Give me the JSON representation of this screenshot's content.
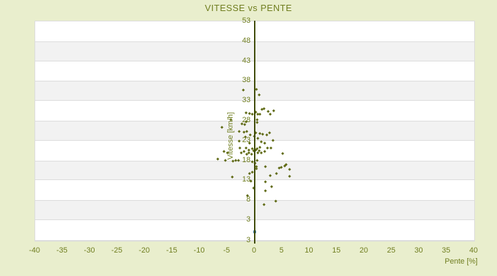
{
  "title": "VITESSE vs PENTE",
  "colors": {
    "background": "#e9eecd",
    "band_white": "#ffffff",
    "band_gray": "#f2f2f2",
    "band_border": "#dcdcdc",
    "axis_line": "#3e4a05",
    "text": "#6f7d1f",
    "point_main": "#606b16",
    "point_highlight": "#3e7ca6"
  },
  "chart_data": {
    "type": "scatter",
    "title": "VITESSE vs PENTE",
    "xlabel": "Pente [%]",
    "ylabel": "Vitesse [km/h]",
    "xlim": [
      -40,
      40
    ],
    "ylim": [
      -2.2,
      53
    ],
    "x_ticks": [
      -40,
      -35,
      -30,
      -25,
      -20,
      -15,
      -10,
      -5,
      0,
      5,
      10,
      15,
      20,
      25,
      30,
      35,
      40
    ],
    "y_ticks": [
      53,
      48,
      43,
      38,
      33,
      28,
      23,
      18,
      13,
      8,
      3
    ],
    "y_axis_bottom_label": "3",
    "grid": "horizontal-bands-alternating",
    "legend": "none",
    "series": [
      {
        "name": "vitesse-points",
        "color": "#606b16",
        "marker": "diamond",
        "points": [
          [
            -2.1,
            35.8
          ],
          [
            0.3,
            35.9
          ],
          [
            0.8,
            34.5
          ],
          [
            -1.6,
            30.0
          ],
          [
            -1.0,
            29.9
          ],
          [
            -0.5,
            29.7
          ],
          [
            0.25,
            30.1
          ],
          [
            0.6,
            29.6
          ],
          [
            0.9,
            29.6
          ],
          [
            1.3,
            30.9
          ],
          [
            1.7,
            31.0
          ],
          [
            2.5,
            30.3
          ],
          [
            2.8,
            29.6
          ],
          [
            3.5,
            30.5
          ],
          [
            -4.4,
            28.2
          ],
          [
            -2.3,
            27.3
          ],
          [
            -1.8,
            27.0
          ],
          [
            -1.6,
            27.8
          ],
          [
            0.4,
            27.5
          ],
          [
            0.5,
            28.3
          ],
          [
            -6.0,
            26.3
          ],
          [
            -2.8,
            25.4
          ],
          [
            -2.0,
            25.1
          ],
          [
            -1.4,
            25.3
          ],
          [
            -1.7,
            24.0
          ],
          [
            -0.8,
            24.4
          ],
          [
            -0.1,
            24.1
          ],
          [
            0.2,
            24.9
          ],
          [
            0.9,
            24.8
          ],
          [
            1.5,
            24.6
          ],
          [
            2.2,
            24.5
          ],
          [
            2.7,
            24.9
          ],
          [
            -2.8,
            22.8
          ],
          [
            -0.9,
            22.3
          ],
          [
            0.6,
            23.5
          ],
          [
            1.2,
            22.7
          ],
          [
            1.8,
            22.4
          ],
          [
            3.3,
            23.1
          ],
          [
            -5.6,
            20.3
          ],
          [
            -5.0,
            19.9
          ],
          [
            -2.75,
            21.2
          ],
          [
            -2.5,
            19.9
          ],
          [
            -2.0,
            20.3
          ],
          [
            -1.6,
            21.1
          ],
          [
            -1.5,
            19.6
          ],
          [
            -1.1,
            20.0
          ],
          [
            -1.1,
            20.6
          ],
          [
            -0.6,
            19.5
          ],
          [
            -0.5,
            20.9
          ],
          [
            -0.25,
            20.4
          ],
          [
            0.2,
            20.6
          ],
          [
            0.5,
            21.0
          ],
          [
            0.6,
            20.0
          ],
          [
            0.8,
            20.5
          ],
          [
            1.0,
            21.3
          ],
          [
            1.2,
            20.0
          ],
          [
            1.8,
            20.3
          ],
          [
            2.3,
            21.2
          ],
          [
            3.0,
            21.2
          ],
          [
            5.1,
            19.7
          ],
          [
            -6.7,
            18.4
          ],
          [
            -5.4,
            18.1
          ],
          [
            -3.9,
            17.8
          ],
          [
            -3.5,
            18.0
          ],
          [
            -2.9,
            18.0
          ],
          [
            -0.4,
            17.7
          ],
          [
            0.1,
            17.4
          ],
          [
            0.5,
            18.0
          ],
          [
            0.3,
            16.4
          ],
          [
            0.35,
            16.0
          ],
          [
            1.9,
            16.4
          ],
          [
            4.5,
            16.1
          ],
          [
            4.8,
            16.3
          ],
          [
            5.5,
            16.7
          ],
          [
            5.7,
            16.9
          ],
          [
            6.3,
            15.8
          ],
          [
            -0.9,
            14.8
          ],
          [
            -0.5,
            15.0
          ],
          [
            2.8,
            14.2
          ],
          [
            4.0,
            14.7
          ],
          [
            6.4,
            14.1
          ],
          [
            -4.1,
            13.8
          ],
          [
            -0.7,
            12.9
          ],
          [
            2.0,
            12.6
          ],
          [
            -0.2,
            11.1
          ],
          [
            1.9,
            10.4
          ],
          [
            3.1,
            11.5
          ],
          [
            -1.3,
            9.2
          ],
          [
            1.7,
            6.9
          ],
          [
            3.8,
            7.7
          ]
        ]
      },
      {
        "name": "highlight-point",
        "color": "#3e7ca6",
        "marker": "square",
        "points": [
          [
            0,
            0.1
          ]
        ]
      }
    ]
  }
}
